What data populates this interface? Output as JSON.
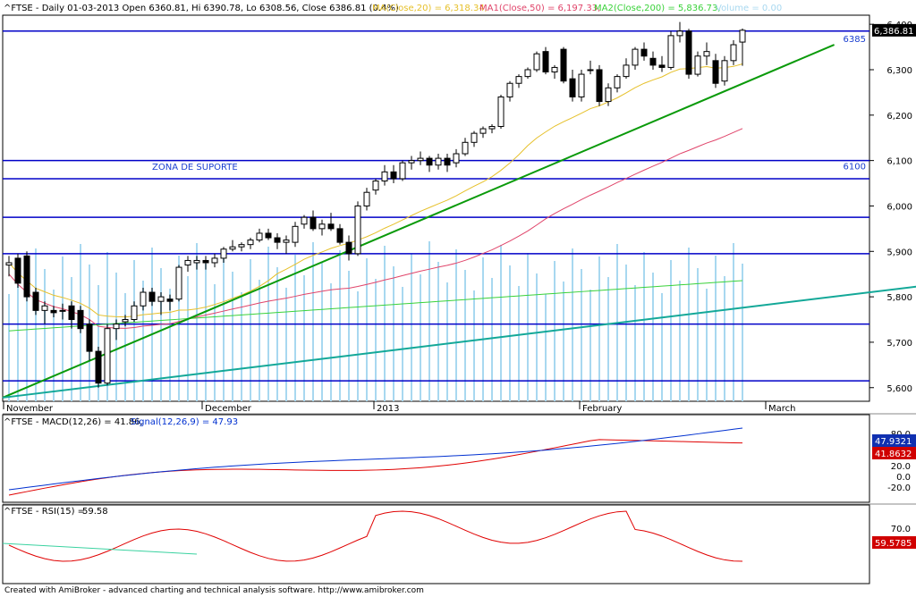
{
  "header": {
    "price_line": "^FTSE - Daily 01-03-2013 Open 6360.81, Hi 6390.78, Lo 6308.56, Close 6386.81 (0.4%)",
    "ma20": "MA(Close,20) = 6,318.34,",
    "ma50": "MA1(Close,50) = 6,197.33,",
    "ma200": "MA2(Close,200) = 5,836.73,",
    "volume": "Volume = 0.00"
  },
  "colors": {
    "ma20": "#e6c02a",
    "ma50": "#e0446a",
    "ma200": "#3ad23a",
    "volume": "#a8d8f0",
    "trend": "#0a9a0a",
    "trend2": "#13a898",
    "levels": "#0000c8",
    "macd": "#e00000",
    "signal": "#0030d0"
  },
  "price_pane": {
    "y_ticks": [
      "6,400",
      "6,300",
      "6,200",
      "6,100",
      "6,000",
      "5,900",
      "5,800",
      "5,700",
      "5,600"
    ],
    "last_price_badge": "6,386.81",
    "level_label_6385": "6385",
    "level_label_6100": "6100",
    "support_label": "ZONA DE SUPORTE",
    "x_labels": [
      "November",
      "December",
      "2013",
      "February",
      "March"
    ]
  },
  "macd_pane": {
    "title_a": "^FTSE - MACD(12,26) = 41.86,",
    "title_b": "Signal(12,26,9) = 47.93",
    "y_ticks": [
      "80.0",
      "60.0",
      "20.0",
      "0.0",
      "-20.0"
    ],
    "signal_badge": "47.9321",
    "macd_badge": "41.8632"
  },
  "rsi_pane": {
    "title_a": "^FTSE - RSI(15) =",
    "title_b": "59.58",
    "y_ticks": [
      "70.0"
    ],
    "badge": "59.5785"
  },
  "footer": "Created with AmiBroker - advanced charting and technical analysis software. http://www.amibroker.com",
  "chart_data": {
    "type": "candlestick",
    "title": "^FTSE - Daily 01-03-2013",
    "ohlc": [
      [
        5870,
        5890,
        5845,
        5875
      ],
      [
        5885,
        5895,
        5820,
        5830
      ],
      [
        5890,
        5900,
        5790,
        5800
      ],
      [
        5810,
        5820,
        5760,
        5770
      ],
      [
        5770,
        5790,
        5740,
        5780
      ],
      [
        5770,
        5780,
        5755,
        5765
      ],
      [
        5770,
        5785,
        5750,
        5770
      ],
      [
        5780,
        5790,
        5730,
        5750
      ],
      [
        5770,
        5780,
        5720,
        5730
      ],
      [
        5740,
        5750,
        5660,
        5680
      ],
      [
        5680,
        5690,
        5600,
        5610
      ],
      [
        5610,
        5740,
        5605,
        5730
      ],
      [
        5730,
        5750,
        5705,
        5740
      ],
      [
        5745,
        5760,
        5735,
        5750
      ],
      [
        5750,
        5790,
        5745,
        5780
      ],
      [
        5780,
        5820,
        5770,
        5810
      ],
      [
        5810,
        5820,
        5780,
        5790
      ],
      [
        5790,
        5810,
        5760,
        5800
      ],
      [
        5795,
        5805,
        5770,
        5790
      ],
      [
        5795,
        5870,
        5790,
        5865
      ],
      [
        5870,
        5890,
        5855,
        5880
      ],
      [
        5875,
        5890,
        5860,
        5880
      ],
      [
        5880,
        5890,
        5860,
        5875
      ],
      [
        5875,
        5895,
        5865,
        5885
      ],
      [
        5885,
        5910,
        5875,
        5905
      ],
      [
        5905,
        5925,
        5900,
        5910
      ],
      [
        5910,
        5920,
        5900,
        5915
      ],
      [
        5915,
        5930,
        5905,
        5925
      ],
      [
        5925,
        5950,
        5920,
        5940
      ],
      [
        5940,
        5950,
        5925,
        5930
      ],
      [
        5930,
        5940,
        5905,
        5920
      ],
      [
        5920,
        5935,
        5895,
        5925
      ],
      [
        5920,
        5965,
        5910,
        5955
      ],
      [
        5960,
        5980,
        5950,
        5975
      ],
      [
        5975,
        5990,
        5945,
        5950
      ],
      [
        5950,
        5970,
        5935,
        5960
      ],
      [
        5960,
        5985,
        5945,
        5950
      ],
      [
        5950,
        5960,
        5915,
        5920
      ],
      [
        5920,
        5935,
        5880,
        5895
      ],
      [
        5895,
        6010,
        5890,
        6000
      ],
      [
        6000,
        6040,
        5990,
        6030
      ],
      [
        6035,
        6060,
        6025,
        6055
      ],
      [
        6055,
        6090,
        6045,
        6075
      ],
      [
        6075,
        6090,
        6050,
        6060
      ],
      [
        6060,
        6100,
        6055,
        6095
      ],
      [
        6095,
        6110,
        6080,
        6100
      ],
      [
        6100,
        6120,
        6090,
        6105
      ],
      [
        6105,
        6110,
        6075,
        6090
      ],
      [
        6090,
        6115,
        6080,
        6105
      ],
      [
        6105,
        6115,
        6075,
        6090
      ],
      [
        6095,
        6125,
        6085,
        6115
      ],
      [
        6115,
        6150,
        6110,
        6140
      ],
      [
        6140,
        6165,
        6130,
        6160
      ],
      [
        6160,
        6175,
        6150,
        6170
      ],
      [
        6170,
        6180,
        6160,
        6175
      ],
      [
        6175,
        6245,
        6170,
        6240
      ],
      [
        6240,
        6275,
        6230,
        6270
      ],
      [
        6270,
        6290,
        6260,
        6285
      ],
      [
        6285,
        6305,
        6280,
        6300
      ],
      [
        6300,
        6340,
        6295,
        6335
      ],
      [
        6340,
        6350,
        6290,
        6295
      ],
      [
        6295,
        6310,
        6280,
        6305
      ],
      [
        6345,
        6350,
        6270,
        6275
      ],
      [
        6280,
        6300,
        6230,
        6240
      ],
      [
        6240,
        6300,
        6230,
        6290
      ],
      [
        6300,
        6320,
        6290,
        6300
      ],
      [
        6300,
        6310,
        6220,
        6230
      ],
      [
        6230,
        6270,
        6220,
        6260
      ],
      [
        6260,
        6290,
        6250,
        6285
      ],
      [
        6285,
        6325,
        6280,
        6310
      ],
      [
        6310,
        6350,
        6300,
        6345
      ],
      [
        6345,
        6360,
        6320,
        6330
      ],
      [
        6325,
        6340,
        6300,
        6310
      ],
      [
        6310,
        6330,
        6295,
        6305
      ],
      [
        6305,
        6385,
        6300,
        6375
      ],
      [
        6375,
        6405,
        6360,
        6385
      ],
      [
        6385,
        6390,
        6280,
        6290
      ],
      [
        6290,
        6340,
        6285,
        6330
      ],
      [
        6330,
        6360,
        6310,
        6340
      ],
      [
        6320,
        6335,
        6260,
        6270
      ],
      [
        6275,
        6330,
        6265,
        6320
      ],
      [
        6320,
        6365,
        6310,
        6355
      ],
      [
        6360.81,
        6390.78,
        6308.56,
        6386.81
      ]
    ],
    "levels": [
      6385,
      6100,
      6060,
      5975,
      5895,
      5740,
      5615
    ],
    "trendlines": [
      [
        [
          0,
          5578
        ],
        [
          83,
          6355
        ]
      ],
      [
        [
          0,
          5578
        ],
        [
          94,
          5830
        ]
      ]
    ],
    "ylim": [
      5570,
      6420
    ],
    "x_labels": [
      "November",
      "December",
      "2013",
      "February",
      "March"
    ]
  }
}
